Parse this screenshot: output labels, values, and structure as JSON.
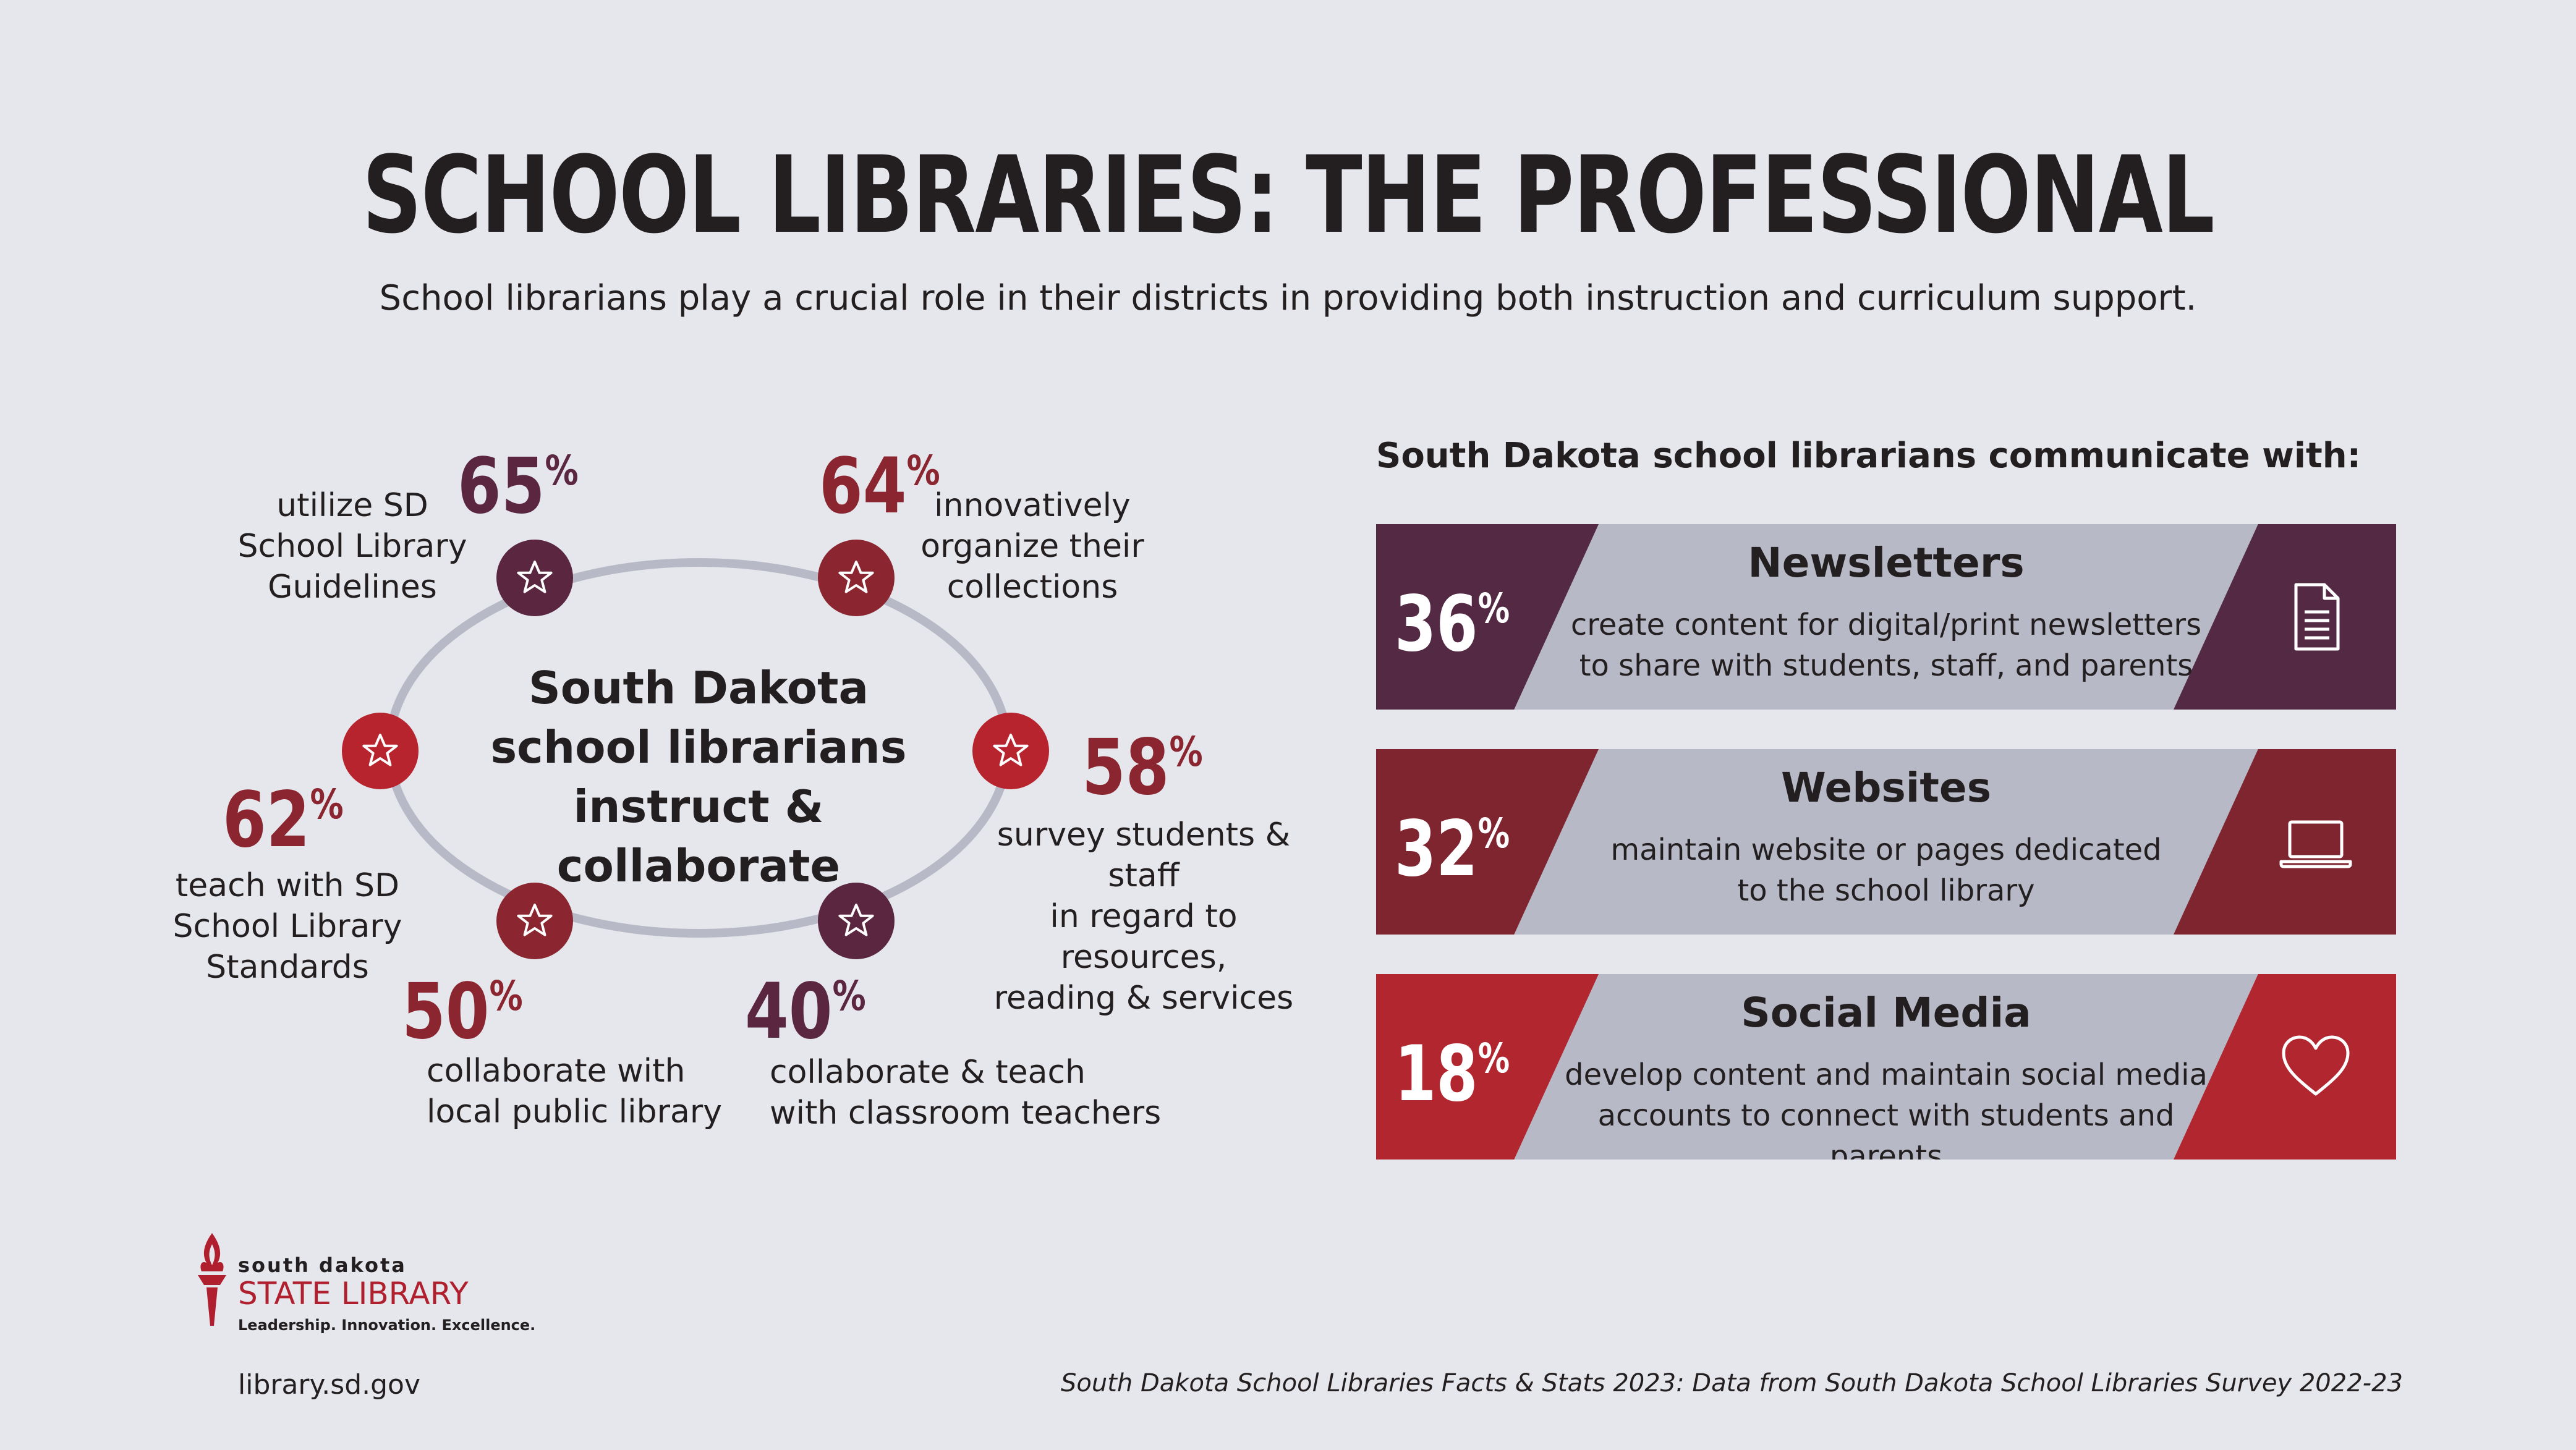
{
  "header": {
    "title": "SCHOOL LIBRARIES: THE PROFESSIONAL",
    "subtitle": "School librarians play a crucial role in their districts in providing both instruction and curriculum support."
  },
  "ring": {
    "center_lines": [
      "South Dakota",
      "school librarians",
      "instruct & collaborate"
    ],
    "colors": {
      "ring": "#b7b9c6",
      "plum": "#5a2640",
      "maroon": "#8b2630",
      "red": "#b8242e"
    },
    "items": [
      {
        "value": "65",
        "unit": "%",
        "lines": [
          "utilize SD",
          "School Library",
          "Guidelines"
        ],
        "icon": "star-icon"
      },
      {
        "value": "64",
        "unit": "%",
        "lines": [
          "innovatively",
          "organize their",
          "collections"
        ],
        "icon": "star-icon"
      },
      {
        "value": "58",
        "unit": "%",
        "lines": [
          "survey students & staff",
          "in regard to resources,",
          "reading & services"
        ],
        "icon": "star-icon"
      },
      {
        "value": "40",
        "unit": "%",
        "lines": [
          "collaborate & teach",
          "with classroom teachers"
        ],
        "icon": "star-icon"
      },
      {
        "value": "50",
        "unit": "%",
        "lines": [
          "collaborate with",
          "local public library"
        ],
        "icon": "star-icon"
      },
      {
        "value": "62",
        "unit": "%",
        "lines": [
          "teach with SD",
          "School Library",
          "Standards"
        ],
        "icon": "star-icon"
      }
    ]
  },
  "communicate": {
    "heading": "South Dakota school librarians communicate with:",
    "items": [
      {
        "value": "36",
        "unit": "%",
        "title": "Newsletters",
        "lines": [
          "create content for digital/print newsletters",
          "to share with students, staff, and parents"
        ],
        "icon": "document-icon",
        "color": "#532944"
      },
      {
        "value": "32",
        "unit": "%",
        "title": "Websites",
        "lines": [
          "maintain website or pages dedicated",
          "to the school library"
        ],
        "icon": "laptop-icon",
        "color": "#7f2530"
      },
      {
        "value": "18",
        "unit": "%",
        "title": "Social Media",
        "lines": [
          "develop content and maintain social media",
          "accounts to connect with students and parents"
        ],
        "icon": "heart-icon",
        "color": "#b2262f"
      }
    ]
  },
  "footer": {
    "logo_top": "south dakota",
    "logo_name": "STATE LIBRARY",
    "logo_tagline": "Leadership. Innovation. Excellence.",
    "url": "library.sd.gov",
    "source": "South Dakota School Libraries Facts & Stats 2023: Data from South Dakota School Libraries Survey 2022-23"
  }
}
